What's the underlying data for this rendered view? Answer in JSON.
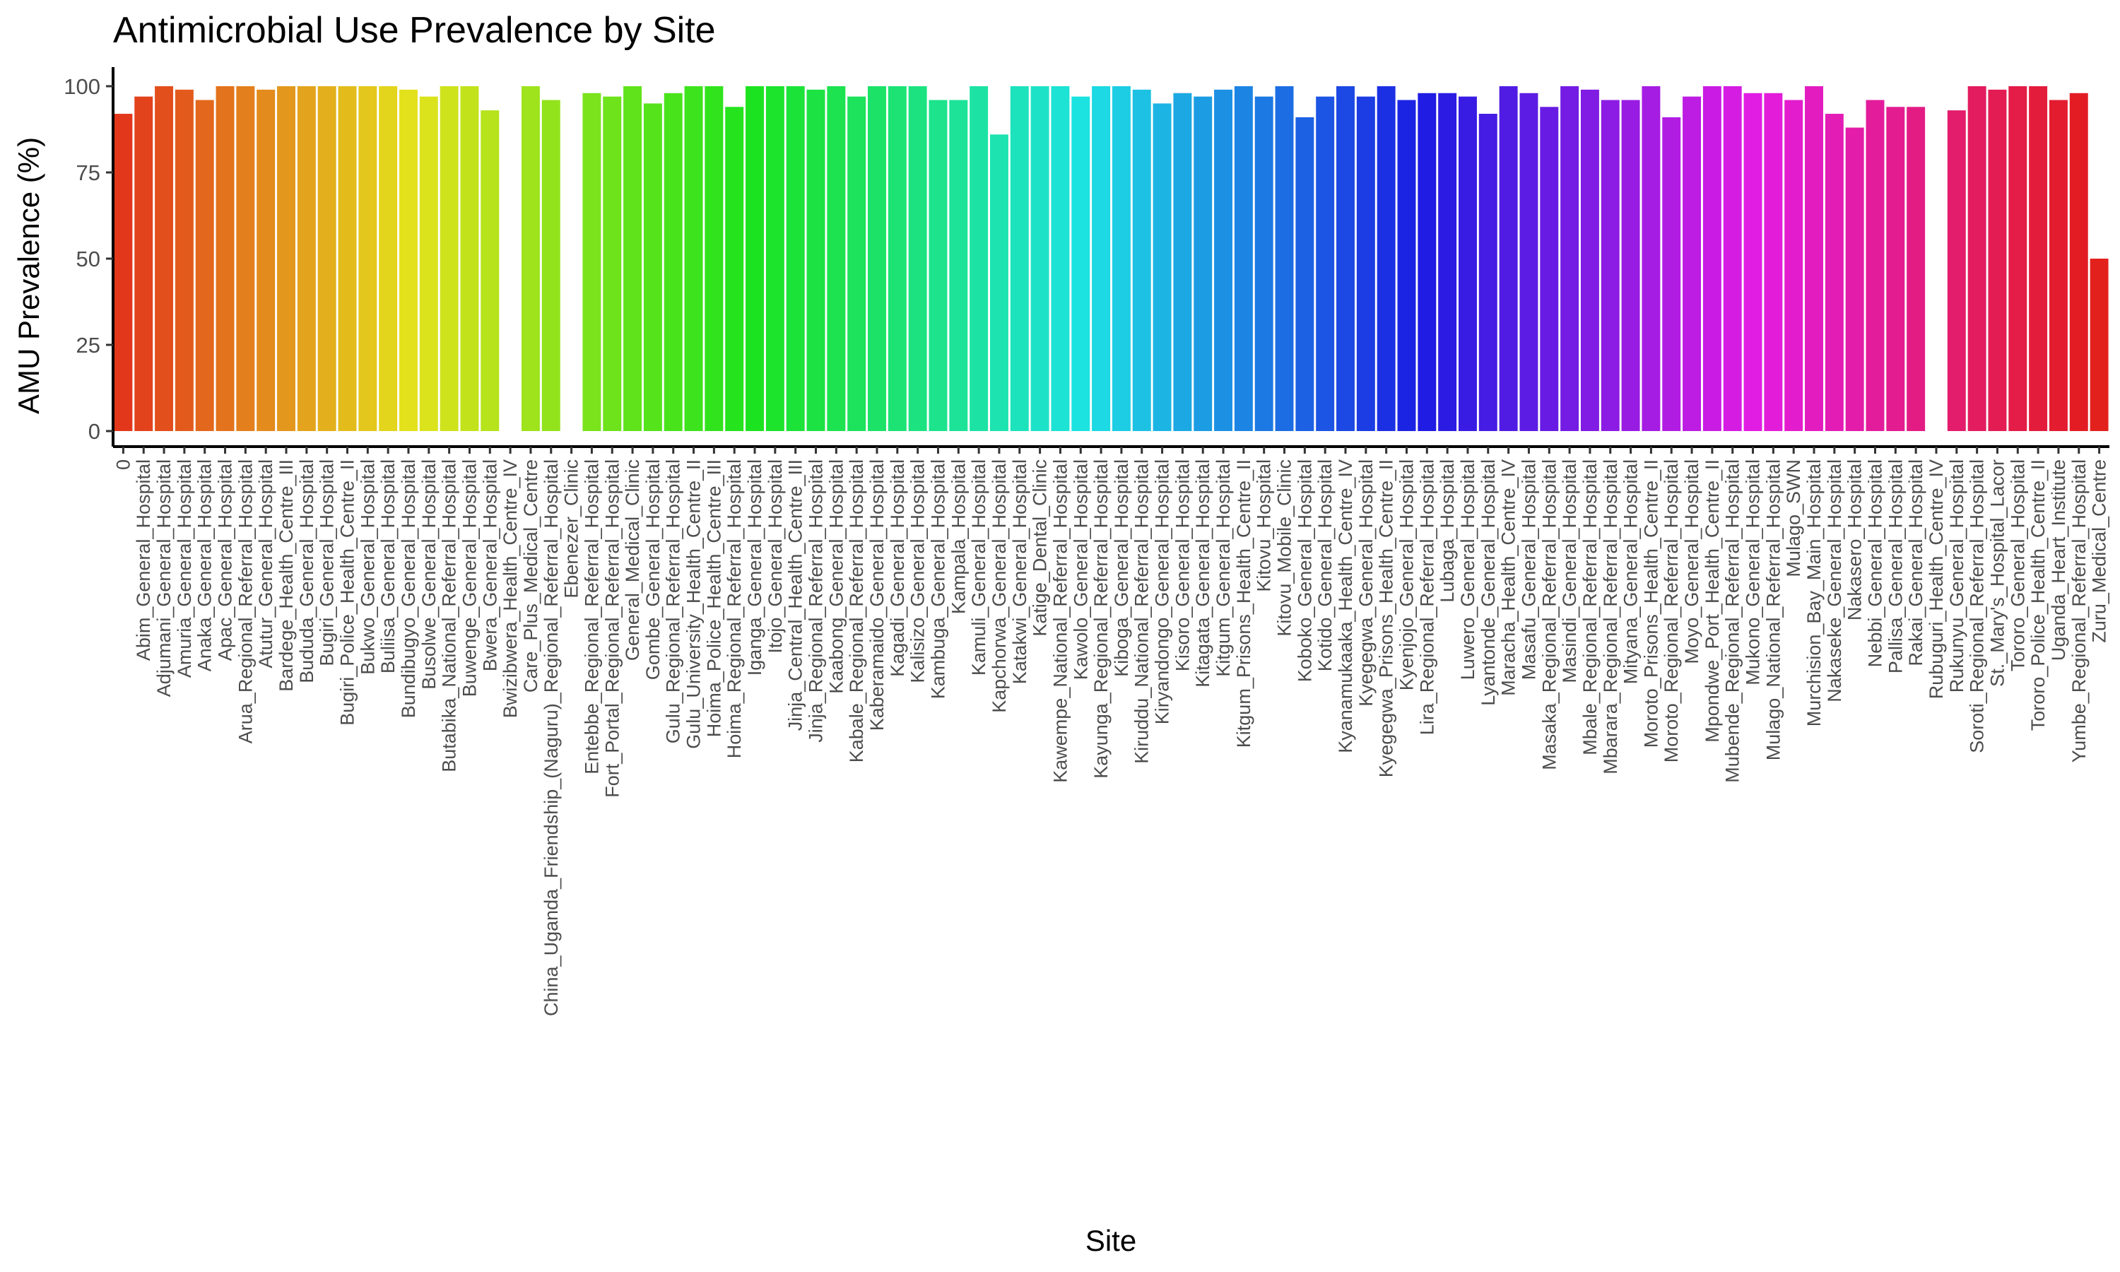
{
  "chart_data": {
    "type": "bar",
    "title": "Antimicrobial Use Prevalence by Site",
    "xlabel": "Site",
    "ylabel": "AMU Prevalence (%)",
    "ylim": [
      0,
      105
    ],
    "yticks": [
      0,
      25,
      50,
      75,
      100
    ],
    "grid": false,
    "legend": "none",
    "bar_color_scheme": "hue gradient by category (red → orange → green → cyan → blue → purple → magenta → pink)",
    "categories": [
      "0",
      "Abim_General_Hospital",
      "Adjumani_General_Hospital",
      "Amuria_General_Hospital",
      "Anaka_General_Hospital",
      "Apac_General_Hospital",
      "Arua_Regional_Referral_Hospital",
      "Atutur_General_Hospital",
      "Bardege_Health_Centre_III",
      "Bududa_General_Hospital",
      "Bugiri_General_Hospital",
      "Bugiri_Police_Health_Centre_II",
      "Bukwo_General_Hospital",
      "Buliisa_General_Hospital",
      "Bundibugyo_General_Hospital",
      "Busolwe_General_Hospital",
      "Butabika_National_Referral_Hospital",
      "Buwenge_General_Hospital",
      "Bwera_General_Hospital",
      "Bwizibwera_Health_Centre_IV",
      "Care_Plus_Medical_Centre",
      "China_Uganda_Friendship_(Naguru)_Regional_Referral_Hospital",
      "Ebenezer_Clinic",
      "Entebbe_Regional_Referral_Hospital",
      "Fort_Portal_Regional_Referral_Hospital",
      "General_Medical_Clinic",
      "Gombe_General_Hospital",
      "Gulu_Regional_Referral_Hospital",
      "Gulu_University_Health_Centre_II",
      "Hoima_Police_Health_Centre_III",
      "Hoima_Regional_Referral_Hospital",
      "Iganga_General_Hospital",
      "Itojo_General_Hospital",
      "Jinja_Central_Health_Centre_III",
      "Jinja_Regional_Referral_Hospital",
      "Kaabong_General_Hospital",
      "Kabale_Regional_Referral_Hospital",
      "Kaberamaido_General_Hospital",
      "Kagadi_General_Hospital",
      "Kalisizo_General_Hospital",
      "Kambuga_General_Hospital",
      "Kampala_Hospital",
      "Kamuli_General_Hospital",
      "Kapchorwa_General_Hospital",
      "Katakwi_General_Hospital",
      "Katige_Dental_Clinic",
      "Kawempe_National_Referral_Hospital",
      "Kawolo_General_Hospital",
      "Kayunga_Regional_Referral_Hospital",
      "Kiboga_General_Hospital",
      "Kiruddu_National_Referral_Hospital",
      "Kiryandongo_General_Hospital",
      "Kisoro_General_Hospital",
      "Kitagata_General_Hospital",
      "Kitgum_General_Hospital",
      "Kitgum_Prisons_Health_Centre_II",
      "Kitovu_Hospital",
      "Kitovu_Mobile_Clinic",
      "Koboko_General_Hospital",
      "Kotido_General_Hospital",
      "Kyanamukaaka_Health_Centre_IV",
      "Kyegegwa_General_Hospital",
      "Kyegegwa_Prisons_Health_Centre_II",
      "Kyenjojo_General_Hospital",
      "Lira_Regional_Referral_Hospital",
      "Lubaga_Hospital",
      "Luwero_General_Hospital",
      "Lyantonde_General_Hospital",
      "Maracha_Health_Centre_IV",
      "Masafu_General_Hospital",
      "Masaka_Regional_Referral_Hospital",
      "Masindi_General_Hospital",
      "Mbale_Regional_Referral_Hospital",
      "Mbarara_Regional_Referral_Hospital",
      "Mityana_General_Hospital",
      "Moroto_Prisons_Health_Centre_II",
      "Moroto_Regional_Referral_Hospital",
      "Moyo_General_Hospital",
      "Mpondwe_Port_Health_Centre_II",
      "Mubende_Regional_Referral_Hospital",
      "Mukono_General_Hospital",
      "Mulago_National_Referral_Hospital",
      "Mulago_SWN",
      "Murchision_Bay_Main_Hospital",
      "Nakaseke_General_Hospital",
      "Nakasero_Hospital",
      "Nebbi_General_Hospital",
      "Pallisa_General_Hospital",
      "Rakai_General_Hospital",
      "Rubuguri_Health_Centre_IV",
      "Rukunyu_General_Hospital",
      "Soroti_Regional_Referral_Hospital",
      "St._Mary's_Hospital_Lacor",
      "Tororo_General_Hospital",
      "Tororo_Police_Health_Centre_II",
      "Uganda_Heart_Institute",
      "Yumbe_Regional_Referral_Hospital",
      "Zuru_Medical_Centre"
    ],
    "values": [
      92,
      97,
      100,
      99,
      96,
      100,
      100,
      99,
      100,
      100,
      100,
      100,
      100,
      100,
      99,
      97,
      100,
      100,
      93,
      0,
      100,
      96,
      0,
      98,
      97,
      100,
      95,
      98,
      100,
      100,
      94,
      100,
      100,
      100,
      99,
      100,
      97,
      100,
      100,
      100,
      96,
      96,
      100,
      86,
      100,
      100,
      100,
      97,
      100,
      100,
      99,
      95,
      98,
      97,
      99,
      100,
      97,
      100,
      91,
      97,
      100,
      97,
      100,
      96,
      98,
      98,
      97,
      92,
      100,
      98,
      94,
      100,
      99,
      96,
      96,
      100,
      91,
      97,
      100,
      100,
      98,
      98,
      96,
      100,
      92,
      88,
      96,
      94,
      94,
      0,
      93,
      100,
      99,
      100,
      100,
      96,
      98,
      50
    ]
  }
}
